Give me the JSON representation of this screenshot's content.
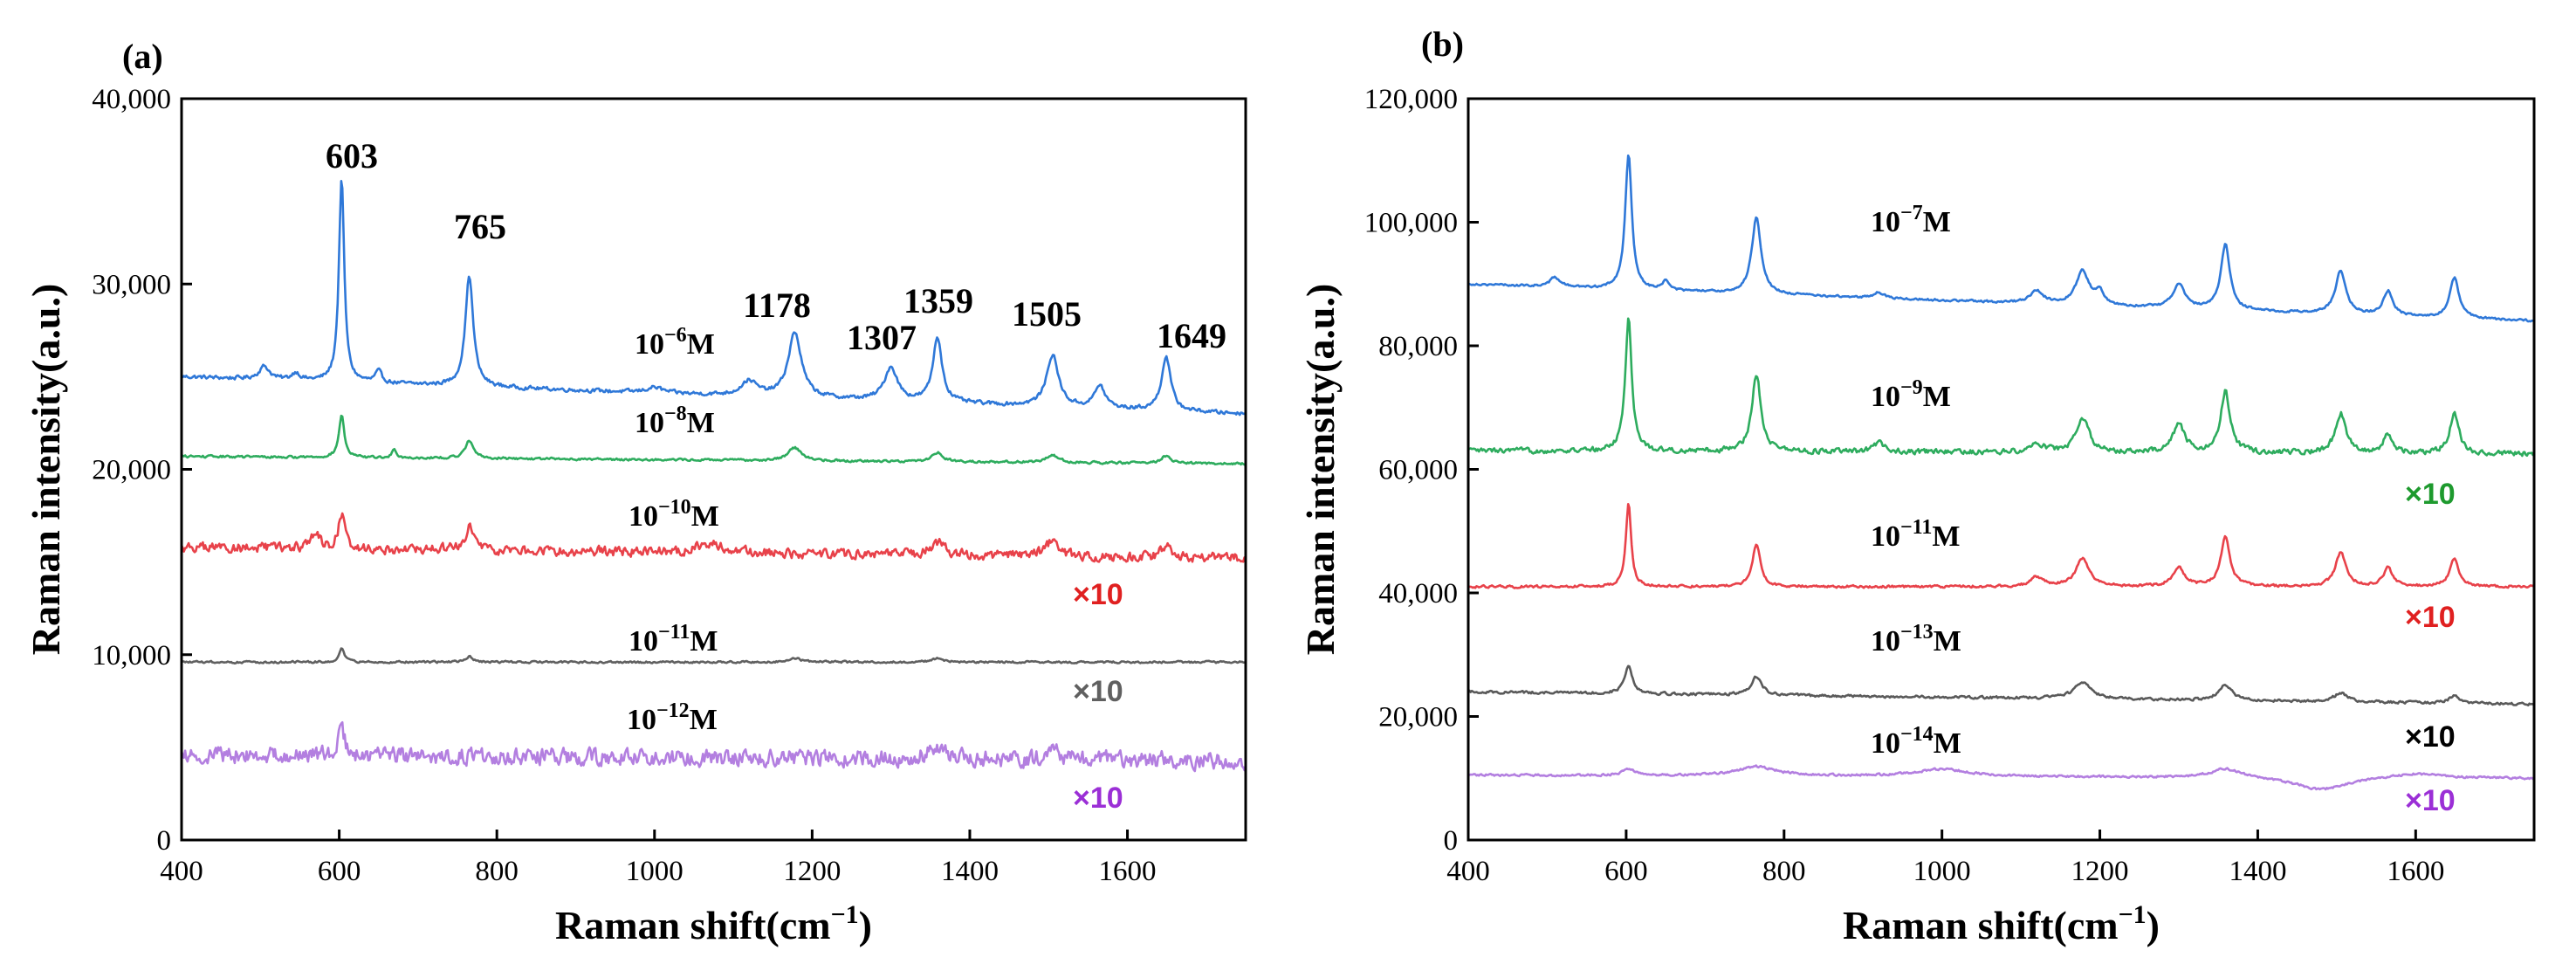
{
  "chart_data": [
    {
      "type": "line",
      "panel_label": "(a)",
      "xlabel": "Raman shift(cm",
      "xlabel_sup": "−1",
      "xlabel_end": ")",
      "ylabel": "Raman intensity(a.u.)",
      "xlim": [
        400,
        1750
      ],
      "ylim": [
        0,
        40000
      ],
      "xticks": [
        400,
        600,
        800,
        1000,
        1200,
        1400,
        1600
      ],
      "xtick_labels": [
        "400",
        "600",
        "800",
        "1000",
        "1200",
        "1400",
        "1600"
      ],
      "yticks": [
        0,
        10000,
        20000,
        30000,
        40000
      ],
      "ytick_labels": [
        "0",
        "10,000",
        "20,000",
        "30,000",
        "40,000"
      ],
      "peak_labels": [
        {
          "x": 603,
          "text": "603"
        },
        {
          "x": 765,
          "text": "765"
        },
        {
          "x": 1178,
          "text": "1178"
        },
        {
          "x": 1307,
          "text": "1307"
        },
        {
          "x": 1359,
          "text": "1359"
        },
        {
          "x": 1505,
          "text": "1505"
        },
        {
          "x": 1649,
          "text": "1649"
        }
      ],
      "series": [
        {
          "name": "10^-6 M",
          "base": "10",
          "exp": "−6",
          "unit": "M",
          "color": "#2f78d8",
          "baseline": [
            [
              400,
              25000
            ],
            [
              1750,
              23000
            ]
          ],
          "noise": 150,
          "peaks": [
            [
              505,
              700,
              8
            ],
            [
              545,
              400,
              6
            ],
            [
              603,
              11000,
              4
            ],
            [
              650,
              600,
              5
            ],
            [
              765,
              6000,
              6
            ],
            [
              1000,
              300,
              12
            ],
            [
              1120,
              800,
              12
            ],
            [
              1178,
              3500,
              10
            ],
            [
              1300,
              1800,
              10
            ],
            [
              1359,
              3500,
              7
            ],
            [
              1505,
              2800,
              9
            ],
            [
              1565,
              1200,
              8
            ],
            [
              1649,
              2900,
              7
            ]
          ],
          "multiplier": ""
        },
        {
          "name": "10^-8 M",
          "base": "10",
          "exp": "−8",
          "unit": "M",
          "color": "#2eac5e",
          "baseline": [
            [
              400,
              20700
            ],
            [
              1750,
              20300
            ]
          ],
          "noise": 90,
          "peaks": [
            [
              603,
              2300,
              4
            ],
            [
              670,
              500,
              3
            ],
            [
              765,
              1000,
              6
            ],
            [
              1178,
              700,
              10
            ],
            [
              1359,
              500,
              8
            ],
            [
              1505,
              400,
              9
            ],
            [
              1649,
              400,
              7
            ]
          ],
          "multiplier": ""
        },
        {
          "name": "10^-10 M",
          "base": "10",
          "exp": "−10",
          "unit": "M",
          "color": "#e8424a",
          "baseline": [
            [
              400,
              15800
            ],
            [
              1750,
              15200
            ]
          ],
          "noise": 380,
          "peaks": [
            [
              570,
              900,
              6
            ],
            [
              603,
              1800,
              5
            ],
            [
              765,
              1200,
              7
            ],
            [
              1070,
              500,
              20
            ],
            [
              1359,
              700,
              10
            ],
            [
              1505,
              800,
              10
            ],
            [
              1649,
              600,
              8
            ]
          ],
          "multiplier": "×10",
          "multiplier_color": "#e02020"
        },
        {
          "name": "10^-11 M",
          "base": "10",
          "exp": "−11",
          "unit": "M",
          "color": "#606060",
          "baseline": [
            [
              400,
              9600
            ],
            [
              1750,
              9600
            ]
          ],
          "noise": 80,
          "peaks": [
            [
              603,
              700,
              4
            ],
            [
              765,
              300,
              6
            ],
            [
              1178,
              200,
              10
            ],
            [
              1359,
              200,
              8
            ]
          ],
          "multiplier": "×10",
          "multiplier_color": "#606060"
        },
        {
          "name": "10^-12 M",
          "base": "10",
          "exp": "−12",
          "unit": "M",
          "color": "#b37fe0",
          "baseline": [
            [
              400,
              4600
            ],
            [
              1750,
              4300
            ]
          ],
          "noise": 650,
          "peaks": [
            [
              603,
              1400,
              5
            ],
            [
              1359,
              700,
              12
            ],
            [
              1505,
              400,
              12
            ]
          ],
          "multiplier": "×10",
          "multiplier_color": "#9b2fd6"
        }
      ]
    },
    {
      "type": "line",
      "panel_label": "(b)",
      "xlabel": "Raman shift(cm",
      "xlabel_sup": "−1",
      "xlabel_end": ")",
      "ylabel": "Raman intensity(a.u.)",
      "xlim": [
        400,
        1750
      ],
      "ylim": [
        0,
        120000
      ],
      "xticks": [
        400,
        600,
        800,
        1000,
        1200,
        1400,
        1600
      ],
      "xtick_labels": [
        "400",
        "600",
        "800",
        "1000",
        "1200",
        "1400",
        "1600"
      ],
      "yticks": [
        0,
        20000,
        40000,
        60000,
        80000,
        100000,
        120000
      ],
      "ytick_labels": [
        "0",
        "20,000",
        "40,000",
        "60,000",
        "80,000",
        "100,000",
        "120,000"
      ],
      "peak_labels": [],
      "series": [
        {
          "name": "10^-7 M",
          "base": "10",
          "exp": "−7",
          "unit": "M",
          "color": "#2f78d8",
          "baseline": [
            [
              400,
              90000
            ],
            [
              1750,
              84000
            ]
          ],
          "noise": 250,
          "peaks": [
            [
              510,
              1500,
              8
            ],
            [
              603,
              22000,
              5
            ],
            [
              650,
              1500,
              5
            ],
            [
              765,
              12500,
              7
            ],
            [
              920,
              900,
              8
            ],
            [
              1120,
              2000,
              10
            ],
            [
              1178,
              5500,
              10
            ],
            [
              1200,
              2000,
              6
            ],
            [
              1300,
              4000,
              9
            ],
            [
              1359,
              10500,
              7
            ],
            [
              1505,
              7000,
              8
            ],
            [
              1565,
              4000,
              7
            ],
            [
              1649,
              6500,
              7
            ]
          ],
          "multiplier": ""
        },
        {
          "name": "10^-9 M",
          "base": "10",
          "exp": "−9",
          "unit": "M",
          "color": "#2eac5e",
          "baseline": [
            [
              400,
              63000
            ],
            [
              1750,
              62500
            ]
          ],
          "noise": 600,
          "peaks": [
            [
              603,
              21500,
              5
            ],
            [
              765,
              12500,
              7
            ],
            [
              920,
              1500,
              8
            ],
            [
              1120,
              1500,
              10
            ],
            [
              1178,
              5500,
              10
            ],
            [
              1300,
              4500,
              9
            ],
            [
              1359,
              10000,
              7
            ],
            [
              1505,
              6500,
              8
            ],
            [
              1565,
              3000,
              7
            ],
            [
              1649,
              6500,
              7
            ]
          ],
          "multiplier": "×10",
          "multiplier_color": "#1e9a2e"
        },
        {
          "name": "10^-11 M",
          "base": "10",
          "exp": "−11",
          "unit": "M",
          "color": "#e8424a",
          "baseline": [
            [
              400,
              41000
            ],
            [
              1750,
              41000
            ]
          ],
          "noise": 300,
          "peaks": [
            [
              603,
              13500,
              4
            ],
            [
              765,
              7000,
              6
            ],
            [
              1120,
              1500,
              10
            ],
            [
              1178,
              4500,
              10
            ],
            [
              1300,
              3000,
              9
            ],
            [
              1359,
              8000,
              7
            ],
            [
              1505,
              5500,
              8
            ],
            [
              1565,
              3000,
              7
            ],
            [
              1649,
              4500,
              7
            ]
          ],
          "multiplier": "×10",
          "multiplier_color": "#e02020"
        },
        {
          "name": "10^-13 M",
          "base": "10",
          "exp": "−13",
          "unit": "M",
          "color": "#5a5a5a",
          "baseline": [
            [
              400,
              24000
            ],
            [
              1750,
              22000
            ]
          ],
          "noise": 300,
          "peaks": [
            [
              603,
              4500,
              6
            ],
            [
              765,
              3000,
              8
            ],
            [
              1178,
              2500,
              14
            ],
            [
              1359,
              2500,
              10
            ],
            [
              1505,
              1500,
              10
            ],
            [
              1649,
              1200,
              8
            ]
          ],
          "multiplier": "×10",
          "multiplier_color": "#000000"
        },
        {
          "name": "10^-14 M",
          "base": "10",
          "exp": "−14",
          "unit": "M",
          "color": "#b37fe0",
          "baseline": [
            [
              400,
              10500
            ],
            [
              1750,
              10000
            ]
          ],
          "noise": 250,
          "peaks": [
            [
              603,
              1000,
              10
            ],
            [
              765,
              1500,
              30
            ],
            [
              1000,
              1200,
              40
            ],
            [
              1359,
              1500,
              25
            ],
            [
              1480,
              -2000,
              40
            ],
            [
              1600,
              800,
              40
            ]
          ],
          "multiplier": "×10",
          "multiplier_color": "#9b2fd6"
        }
      ]
    }
  ]
}
